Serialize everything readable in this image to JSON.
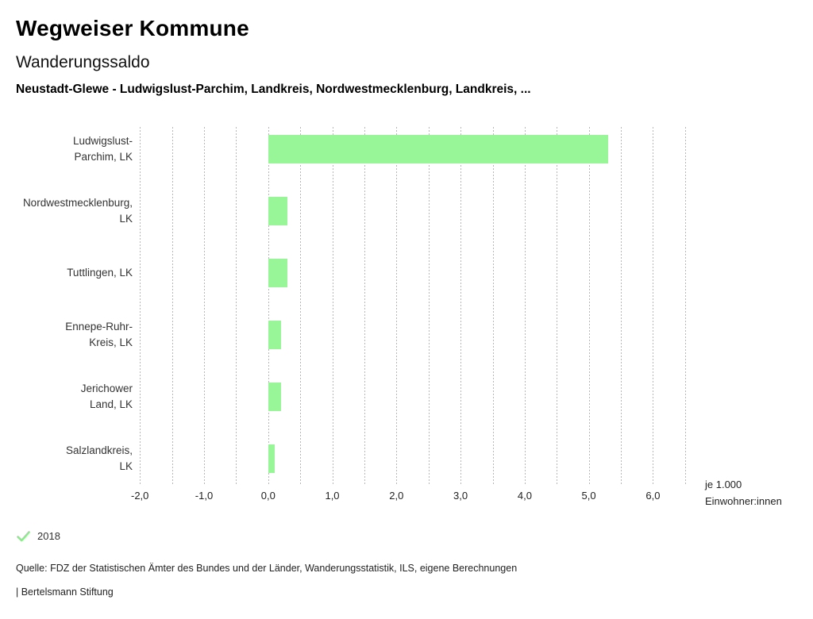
{
  "header": {
    "site_title": "Wegweiser Kommune",
    "page_title": "Wanderungssaldo",
    "subtitle": "Neustadt-Glewe - Ludwigslust-Parchim, Landkreis, Nordwestmecklenburg, Landkreis, ..."
  },
  "chart_data": {
    "type": "bar",
    "orientation": "horizontal",
    "title": "Wanderungssaldo",
    "categories": [
      [
        "Ludwigslust-",
        "Parchim, LK"
      ],
      [
        "Nordwestmecklenburg,",
        "LK"
      ],
      [
        "Tuttlingen, LK"
      ],
      [
        "Ennepe-Ruhr-",
        "Kreis, LK"
      ],
      [
        "Jerichower",
        "Land, LK"
      ],
      [
        "Salzlandkreis,",
        "LK"
      ]
    ],
    "series": [
      {
        "name": "2018",
        "values": [
          5.3,
          0.3,
          0.3,
          0.2,
          0.2,
          0.1
        ]
      }
    ],
    "xlabel_lines": [
      "je 1.000",
      "Einwohner:innen"
    ],
    "xlim": [
      -2.25,
      6.75
    ],
    "grid": {
      "on": true,
      "start": -2.0,
      "end": 6.5,
      "step": 0.5
    },
    "x_ticks": [
      {
        "value": -2,
        "label": "-2,0"
      },
      {
        "value": -1,
        "label": "-1,0"
      },
      {
        "value": 0,
        "label": "0,0"
      },
      {
        "value": 1,
        "label": "1,0"
      },
      {
        "value": 2,
        "label": "2,0"
      },
      {
        "value": 3,
        "label": "3,0"
      },
      {
        "value": 4,
        "label": "4,0"
      },
      {
        "value": 5,
        "label": "5,0"
      },
      {
        "value": 6,
        "label": "6,0"
      }
    ],
    "legend": {
      "position": "bottom-left",
      "items": [
        {
          "label": "2018",
          "checked": true
        }
      ]
    },
    "colors": {
      "bar": "#98f598",
      "legend_check": "#8fe88f",
      "gridline": "#b7b7b7"
    }
  },
  "footer": {
    "source": "Quelle: FDZ der Statistischen Ämter des Bundes und der Länder, Wanderungsstatistik, ILS, eigene Berechnungen",
    "attribution": "| Bertelsmann Stiftung"
  }
}
